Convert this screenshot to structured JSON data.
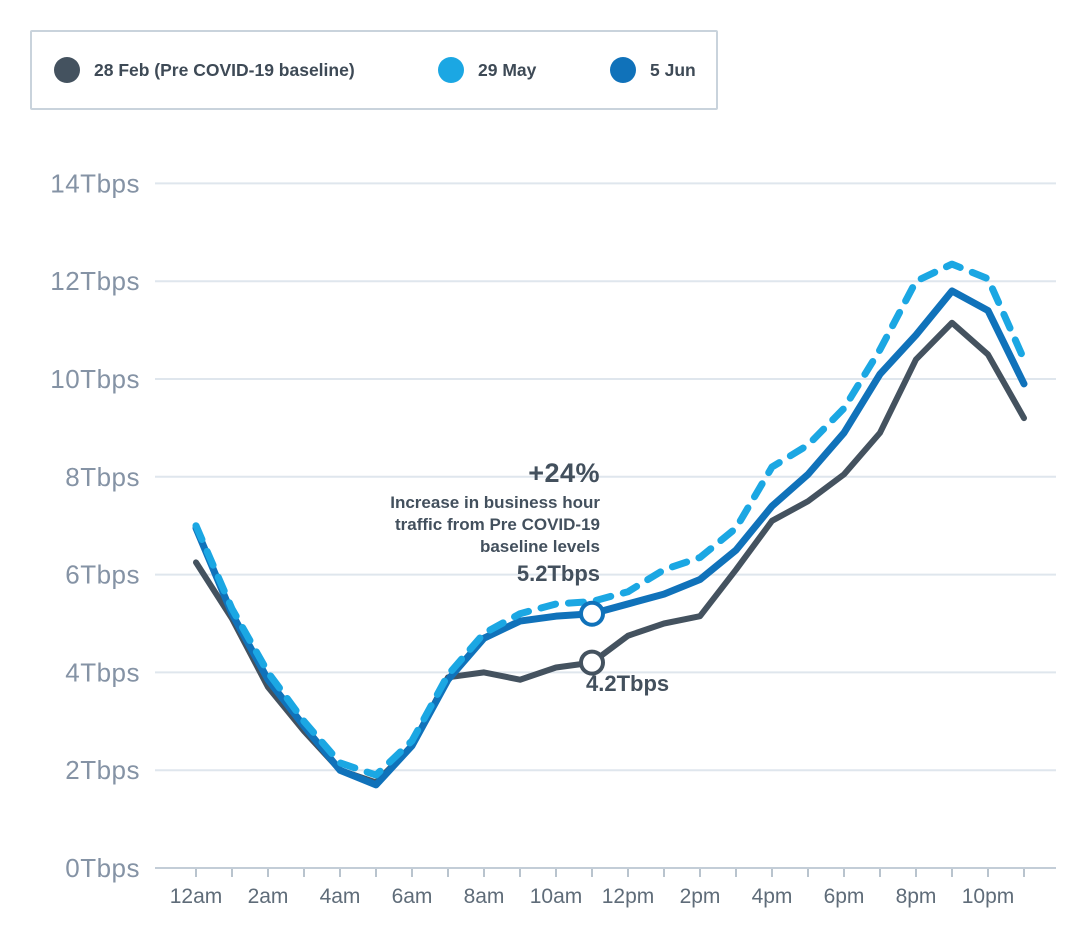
{
  "legend": {
    "items": [
      {
        "label": "28 Feb (Pre COVID-19 baseline)",
        "color": "#44525f"
      },
      {
        "label": "29 May",
        "color": "#1ba7e3"
      },
      {
        "label": "5 Jun",
        "color": "#1072ba"
      }
    ]
  },
  "annotation": {
    "headline": "+24%",
    "description": "Increase in business hour traffic from Pre COVID-19 baseline levels",
    "upper_value_label": "5.2Tbps",
    "lower_value_label": "4.2Tbps"
  },
  "chart_data": {
    "type": "line",
    "unit": "Tbps",
    "grid": true,
    "legend_position": "top-left",
    "ylim": [
      0,
      14
    ],
    "y_ticks": [
      0,
      2,
      4,
      6,
      8,
      10,
      12,
      14
    ],
    "x_labeled_every": "2 hours",
    "categories": [
      "12am",
      "1am",
      "2am",
      "3am",
      "4am",
      "5am",
      "6am",
      "7am",
      "8am",
      "9am",
      "10am",
      "11am",
      "12pm",
      "1pm",
      "2pm",
      "3pm",
      "4pm",
      "5pm",
      "6pm",
      "7pm",
      "8pm",
      "9pm",
      "10pm",
      "11pm"
    ],
    "series": [
      {
        "name": "28 Feb (Pre COVID-19 baseline)",
        "color": "#44525f",
        "style": "solid",
        "values": [
          6.25,
          5.1,
          3.7,
          2.8,
          2.0,
          1.75,
          2.5,
          3.9,
          4.0,
          3.85,
          4.1,
          4.2,
          4.75,
          5.0,
          5.15,
          6.1,
          7.1,
          7.5,
          8.05,
          8.9,
          10.4,
          11.15,
          10.5,
          9.2
        ]
      },
      {
        "name": "5 Jun",
        "color": "#1072ba",
        "style": "solid",
        "values": [
          6.95,
          5.2,
          3.85,
          2.9,
          2.0,
          1.7,
          2.5,
          3.85,
          4.7,
          5.05,
          5.15,
          5.2,
          5.4,
          5.6,
          5.9,
          6.5,
          7.4,
          8.05,
          8.9,
          10.1,
          10.9,
          11.8,
          11.4,
          9.9
        ]
      },
      {
        "name": "29 May",
        "color": "#1ba7e3",
        "style": "dashed",
        "values": [
          7.0,
          5.3,
          4.0,
          3.0,
          2.15,
          1.9,
          2.6,
          3.95,
          4.8,
          5.2,
          5.4,
          5.45,
          5.65,
          6.1,
          6.35,
          6.95,
          8.2,
          8.65,
          9.4,
          10.6,
          12.0,
          12.35,
          12.05,
          10.4
        ]
      }
    ],
    "markers": [
      {
        "series": "5 Jun",
        "at": "11am",
        "value": 5.2
      },
      {
        "series": "28 Feb (Pre COVID-19 baseline)",
        "at": "11am",
        "value": 4.2
      }
    ]
  }
}
